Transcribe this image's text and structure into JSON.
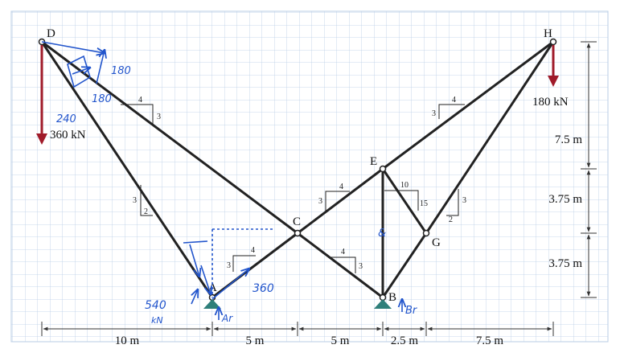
{
  "nodes": {
    "D": "D",
    "H": "H",
    "E": "E",
    "C": "C",
    "G": "G",
    "A": "A",
    "B": "B"
  },
  "loads": {
    "d_load": "360 kN",
    "h_load": "180 kN"
  },
  "slopes": {
    "dc_run": "4",
    "dc_rise": "3",
    "da_rise": "3",
    "da_run": "2",
    "ac_run": "4",
    "ac_rise": "3",
    "ce_run": "4",
    "ce_rise": "3",
    "cb_run": "4",
    "cb_rise": "3",
    "eh_run": "4",
    "eh_rise": "3",
    "eg_run": "10",
    "eg_rise": "15",
    "gh_rise": "3",
    "gh_run": "2"
  },
  "dimensions": {
    "horizontal": [
      "10 m",
      "5 m",
      "5 m",
      "2.5 m",
      "7.5 m"
    ],
    "vertical": [
      "7.5 m",
      "3.75 m",
      "3.75 m"
    ]
  },
  "handwriting": {
    "d_top": "180",
    "d_mid": "180",
    "d_240": "240",
    "a_left": "540",
    "a_left_unit": "kN",
    "a_right": "360",
    "a_reaction": "Ar",
    "b_reaction": "Br",
    "eb_mark": "&"
  },
  "colors": {
    "grid": "#b9cde6",
    "member": "#222222",
    "load_arrow": "#a01b2a",
    "support": "#2f7f7a",
    "handwriting": "#2255cc"
  }
}
